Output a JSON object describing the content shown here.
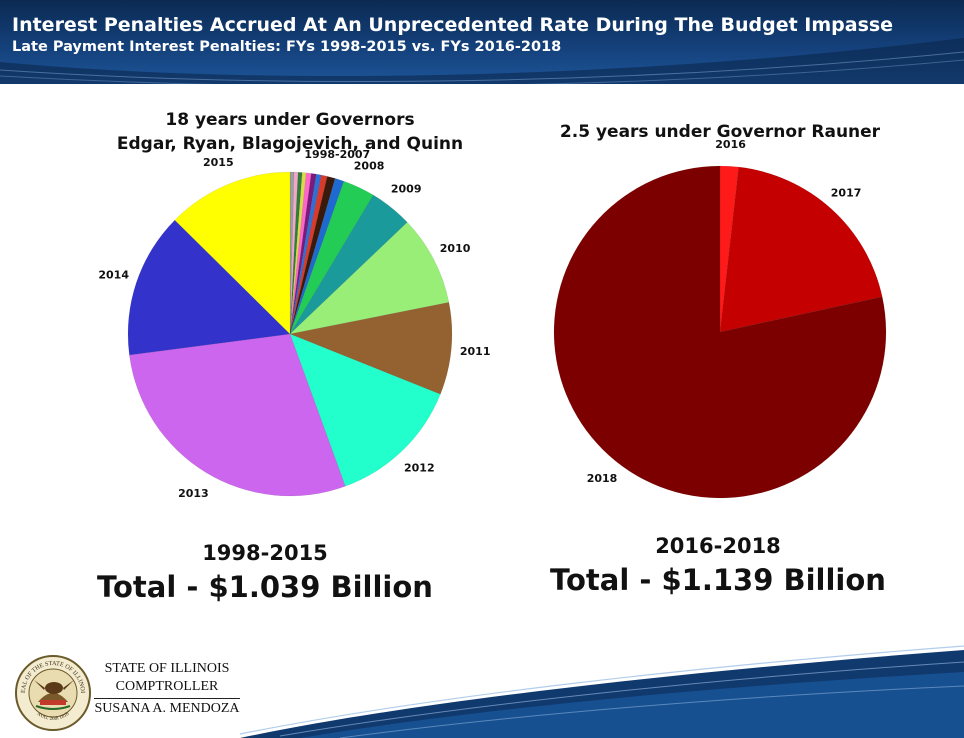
{
  "header": {
    "title": "Interest Penalties Accrued At An Unprecedented Rate During The Budget Impasse",
    "subtitle": "Late Payment Interest Penalties: FYs 1998-2015 vs. FYs 2016-2018"
  },
  "footer": {
    "org_line1": "STATE OF ILLINOIS",
    "org_line2": "COMPTROLLER",
    "org_line3": "SUSANA A. MENDOZA",
    "seal_text": "SEAL OF THE STATE OF ILLINOIS",
    "seal_date": "AUG. 26th 1818"
  },
  "chart_data": [
    {
      "type": "pie",
      "title_line1": "18 years under Governors",
      "title_line2": "Edgar, Ryan, Blagojevich, and Quinn",
      "period": "1998-2015",
      "total_label": "Total - $1.039 Billion",
      "slices": [
        {
          "label": "",
          "value": 0.4,
          "color": "#9e9e9e"
        },
        {
          "label": "",
          "value": 0.4,
          "color": "#f2a6c8"
        },
        {
          "label": "",
          "value": 0.4,
          "color": "#2f7d3a"
        },
        {
          "label": "",
          "value": 0.4,
          "color": "#d9d94a"
        },
        {
          "label": "",
          "value": 0.5,
          "color": "#ff66cc"
        },
        {
          "label": "",
          "value": 0.5,
          "color": "#7a1a7a"
        },
        {
          "label": "",
          "value": 0.5,
          "color": "#2f6fd6"
        },
        {
          "label": "",
          "value": 0.6,
          "color": "#d93a2a"
        },
        {
          "label": "1998-2007",
          "value": 0.8,
          "color": "#3a1a0a"
        },
        {
          "label": "",
          "value": 0.9,
          "color": "#1e6ad0"
        },
        {
          "label": "2008",
          "value": 3.2,
          "color": "#22cc55"
        },
        {
          "label": "2009",
          "value": 4.3,
          "color": "#1a9a9a"
        },
        {
          "label": "2010",
          "value": 9.0,
          "color": "#99ee77"
        },
        {
          "label": "2011",
          "value": 9.2,
          "color": "#946230"
        },
        {
          "label": "2012",
          "value": 13.4,
          "color": "#22ffcc"
        },
        {
          "label": "2013",
          "value": 28.5,
          "color": "#cc66ee"
        },
        {
          "label": "2014",
          "value": 14.5,
          "color": "#3333cc"
        },
        {
          "label": "2015",
          "value": 12.6,
          "color": "#ffff00"
        }
      ]
    },
    {
      "type": "pie",
      "title_line1": "2.5 years under Governor Rauner",
      "period": "2016-2018",
      "total_label": "Total - $1.139 Billion",
      "slices": [
        {
          "label": "2016",
          "value": 1.8,
          "color": "#ff1a1a"
        },
        {
          "label": "2017",
          "value": 19.8,
          "color": "#c40000"
        },
        {
          "label": "2018",
          "value": 78.4,
          "color": "#7d0000"
        }
      ]
    }
  ]
}
